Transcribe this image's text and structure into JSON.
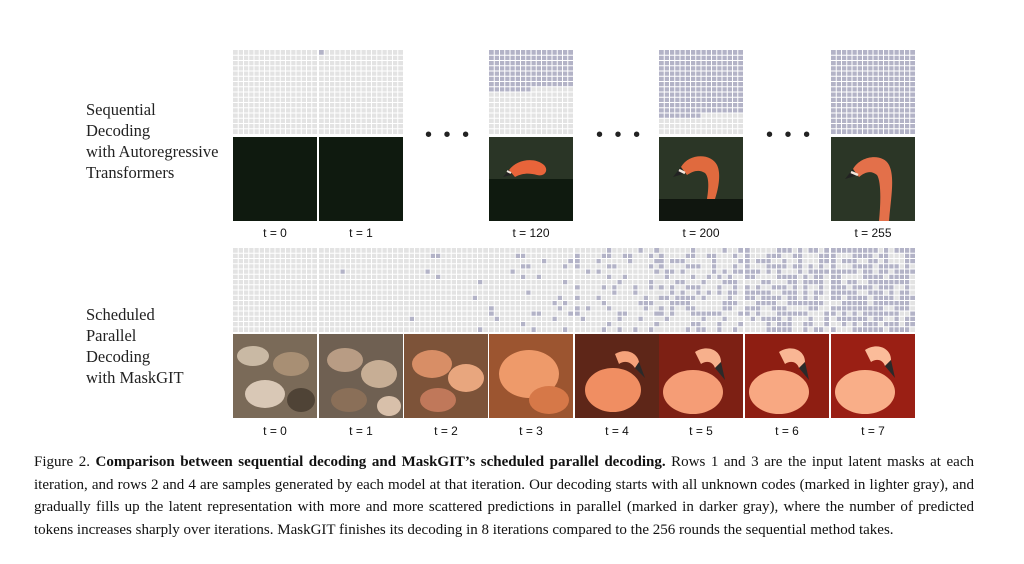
{
  "figure": {
    "sequential_label": [
      "Sequential",
      "Decoding",
      "with Autoregressive",
      "Transformers"
    ],
    "parallel_label": [
      "Scheduled",
      "Parallel",
      "Decoding",
      "with MaskGIT"
    ],
    "ellipsis": "• • •",
    "sequential_steps": [
      {
        "label": "t = 0",
        "predicted_fraction": 0.0
      },
      {
        "label": "t = 1",
        "predicted_fraction": 0.004
      },
      {
        "label": "t = 120",
        "predicted_fraction": 0.47
      },
      {
        "label": "t = 200",
        "predicted_fraction": 0.78
      },
      {
        "label": "t = 255",
        "predicted_fraction": 1.0
      }
    ],
    "parallel_steps": [
      {
        "label": "t = 0"
      },
      {
        "label": "t = 1"
      },
      {
        "label": "t = 2"
      },
      {
        "label": "t = 3"
      },
      {
        "label": "t = 4"
      },
      {
        "label": "t = 5"
      },
      {
        "label": "t = 6"
      },
      {
        "label": "t = 7"
      }
    ],
    "colors": {
      "unknown_token": "#e3e3e3",
      "predicted_token": "#b3b3c7",
      "grid_line": "#ffffff",
      "dark_background": "#0f1a0f"
    }
  },
  "caption": {
    "prefix": "Figure 2. ",
    "title": "Comparison between sequential decoding and MaskGIT’s scheduled parallel decoding.",
    "body": " Rows 1 and 3 are the input latent masks at each iteration, and rows 2 and 4 are samples generated by each model at that iteration. Our decoding starts with all unknown codes (marked in lighter gray), and gradually fills up the latent representation with more and more scattered predictions in parallel (marked in darker gray), where the number of predicted tokens increases sharply over iterations. MaskGIT finishes its decoding in 8 iterations compared to the 256 rounds the sequential method takes."
  }
}
